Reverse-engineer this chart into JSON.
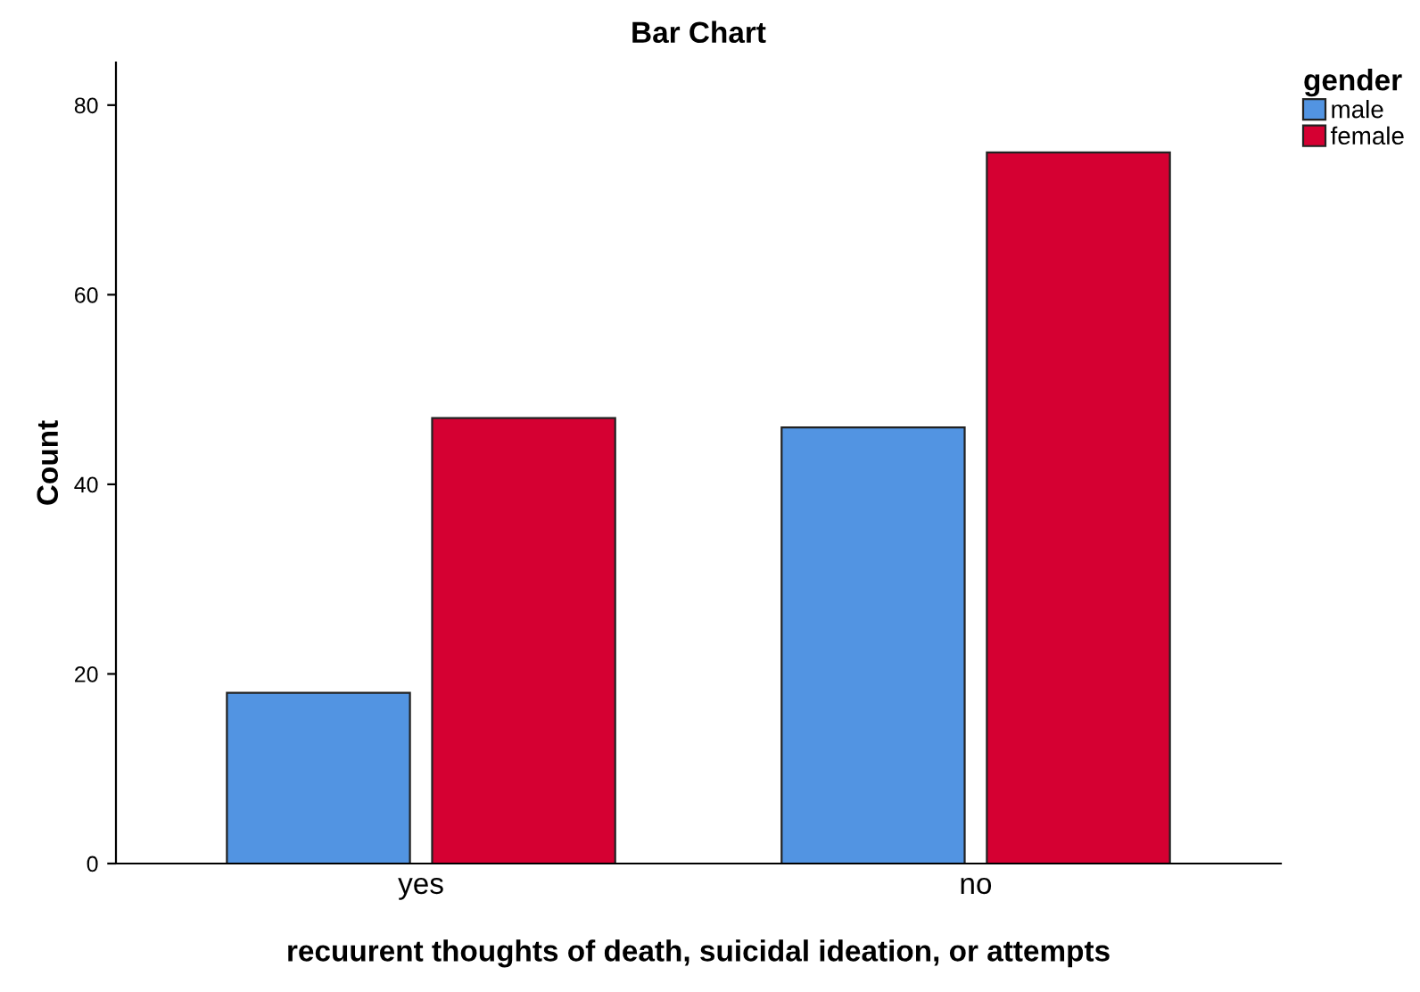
{
  "chart_data": {
    "type": "bar",
    "title": "Bar Chart",
    "xlabel": "recuurent thoughts of death, suicidal ideation, or attempts",
    "ylabel": "Count",
    "categories": [
      "yes",
      "no"
    ],
    "series": [
      {
        "name": "male",
        "color": "#5294e2",
        "values": [
          18,
          46
        ]
      },
      {
        "name": "female",
        "color": "#d50032",
        "values": [
          47,
          75
        ]
      }
    ],
    "legend_title": "gender",
    "legend": "top right",
    "ylim": [
      0,
      84.5
    ],
    "yticks": [
      0,
      20,
      40,
      60,
      80
    ],
    "grid": false
  }
}
